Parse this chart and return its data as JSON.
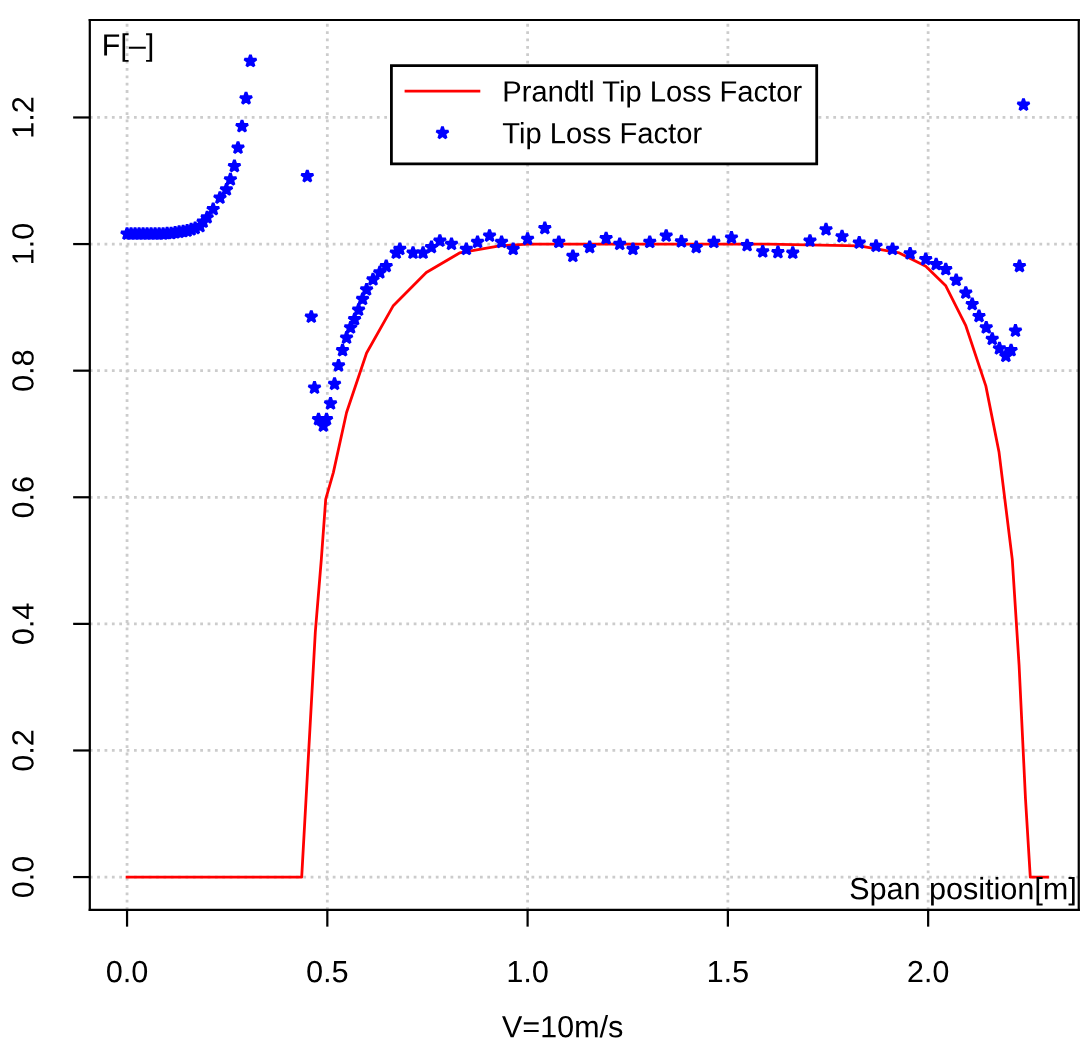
{
  "chart_data": {
    "type": "line",
    "ylabel": "F[–]",
    "xlabel": "Span position[m]",
    "annotations": [
      "V=10m/s"
    ],
    "xlim": [
      -0.093,
      2.376
    ],
    "ylim": [
      -0.052,
      1.354
    ],
    "xticks": [
      {
        "value": 0,
        "label": "0.0"
      },
      {
        "value": 0.5,
        "label": "0.5"
      },
      {
        "value": 1,
        "label": "1.0"
      },
      {
        "value": 1.5,
        "label": "1.5"
      },
      {
        "value": 2,
        "label": "2.0"
      }
    ],
    "yticks": [
      {
        "value": 0,
        "label": "0.0"
      },
      {
        "value": 0.2,
        "label": "0.2"
      },
      {
        "value": 0.4,
        "label": "0.4"
      },
      {
        "value": 0.6,
        "label": "0.6"
      },
      {
        "value": 0.8,
        "label": "0.8"
      },
      {
        "value": 1,
        "label": "1.0"
      },
      {
        "value": 1.2,
        "label": "1.2"
      }
    ],
    "grid": true,
    "legend": "top",
    "series": [
      {
        "name": "Prandtl Tip Loss Factor",
        "color": "#ff0000",
        "line_style": "solid",
        "marker": "none",
        "x": [
          0,
          0.436,
          0.47,
          0.485,
          0.496,
          0.515,
          0.548,
          0.598,
          0.664,
          0.747,
          0.83,
          0.93,
          1.0,
          1.6,
          1.828,
          1.928,
          1.994,
          2.044,
          2.094,
          2.144,
          2.177,
          2.21,
          2.227,
          2.243,
          2.255,
          2.298
        ],
        "values": [
          0,
          0,
          0.387,
          0.502,
          0.597,
          0.639,
          0.734,
          0.828,
          0.902,
          0.955,
          0.986,
          0.997,
          1.0,
          1.0,
          0.997,
          0.986,
          0.965,
          0.934,
          0.871,
          0.776,
          0.671,
          0.502,
          0.335,
          0.124,
          0,
          0
        ]
      },
      {
        "name": "Tip Loss Factor",
        "type": "scatter",
        "color": "#0000ff",
        "marker": "star",
        "x": [
          0,
          0.01,
          0.02,
          0.03,
          0.04,
          0.05,
          0.06,
          0.07,
          0.08,
          0.09,
          0.1,
          0.11,
          0.12,
          0.13,
          0.14,
          0.15,
          0.16,
          0.17,
          0.182,
          0.19,
          0.2,
          0.215,
          0.232,
          0.248,
          0.258,
          0.268,
          0.277,
          0.287,
          0.297,
          0.308,
          0.45,
          0.46,
          0.468,
          0.478,
          0.49,
          0.498,
          0.508,
          0.518,
          0.528,
          0.538,
          0.548,
          0.558,
          0.568,
          0.578,
          0.588,
          0.598,
          0.614,
          0.631,
          0.647,
          0.672,
          0.681,
          0.714,
          0.739,
          0.76,
          0.781,
          0.81,
          0.847,
          0.875,
          0.905,
          0.935,
          0.964,
          1.0,
          1.043,
          1.078,
          1.113,
          1.155,
          1.196,
          1.23,
          1.263,
          1.305,
          1.346,
          1.384,
          1.421,
          1.465,
          1.509,
          1.548,
          1.587,
          1.625,
          1.662,
          1.705,
          1.745,
          1.785,
          1.828,
          1.87,
          1.911,
          1.955,
          1.994,
          2.02,
          2.044,
          2.07,
          2.094,
          2.11,
          2.127,
          2.145,
          2.16,
          2.178,
          2.194,
          2.207,
          2.218,
          2.228,
          2.238
        ],
        "values": [
          1.016,
          1.016,
          1.016,
          1.016,
          1.016,
          1.016,
          1.016,
          1.016,
          1.016,
          1.016,
          1.017,
          1.017,
          1.018,
          1.019,
          1.02,
          1.021,
          1.023,
          1.025,
          1.028,
          1.035,
          1.042,
          1.055,
          1.073,
          1.086,
          1.102,
          1.123,
          1.152,
          1.186,
          1.23,
          1.289,
          1.107,
          0.885,
          0.773,
          0.723,
          0.713,
          0.723,
          0.748,
          0.779,
          0.808,
          0.832,
          0.852,
          0.868,
          0.881,
          0.896,
          0.913,
          0.928,
          0.944,
          0.955,
          0.965,
          0.986,
          0.992,
          0.986,
          0.986,
          0.995,
          1.005,
          1.0,
          0.992,
          1.003,
          1.013,
          1.003,
          0.992,
          1.008,
          1.025,
          1.003,
          0.981,
          0.995,
          1.009,
          1.0,
          0.992,
          1.003,
          1.013,
          1.004,
          0.995,
          1.003,
          1.01,
          0.998,
          0.988,
          0.987,
          0.986,
          1.005,
          1.023,
          1.012,
          1.002,
          0.997,
          0.992,
          0.985,
          0.976,
          0.968,
          0.96,
          0.943,
          0.923,
          0.905,
          0.886,
          0.868,
          0.85,
          0.835,
          0.823,
          0.832,
          0.863,
          0.965,
          1.22
        ]
      }
    ]
  }
}
